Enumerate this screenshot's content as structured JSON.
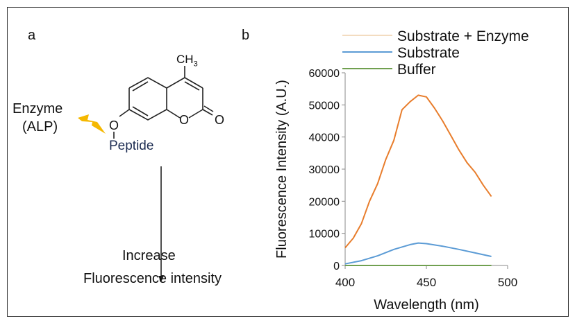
{
  "panel_a": {
    "label": "a",
    "enzyme": "Enzyme",
    "enzyme_sub": "(ALP)",
    "peptide": "Peptide",
    "ch3": "CH",
    "ch3_sub": "3",
    "o_ether": "O",
    "o_ring": "O",
    "o_carbonyl": "O",
    "result_line1": "Increase",
    "result_line2": "Fluorescence intensity",
    "bolt_color": "#f5b800"
  },
  "panel_b": {
    "label": "b"
  },
  "chart_data": {
    "type": "line",
    "title": "",
    "xlabel": "Wavelength (nm)",
    "ylabel": "Fluorescence Intensity (A.U.)",
    "xlim": [
      400,
      500
    ],
    "ylim": [
      0,
      60000
    ],
    "xticks": [
      "400",
      "450",
      "500"
    ],
    "yticks": [
      "0",
      "10000",
      "20000",
      "30000",
      "40000",
      "50000",
      "60000"
    ],
    "legend_position": "top-right",
    "series": [
      {
        "name": "Substrate + Enzyme",
        "color": "#e87d2c",
        "legend_color": "#f3dcc0",
        "x": [
          400,
          405,
          410,
          415,
          420,
          425,
          430,
          435,
          440,
          445,
          450,
          455,
          460,
          465,
          470,
          475,
          480,
          485,
          490
        ],
        "y": [
          5500,
          8500,
          13000,
          20000,
          25500,
          33000,
          39000,
          48500,
          51000,
          53000,
          52500,
          49000,
          45000,
          40500,
          36000,
          32000,
          29000,
          25000,
          21500
        ]
      },
      {
        "name": "Substrate",
        "color": "#5b9bd5",
        "legend_color": "#5b9bd5",
        "x": [
          400,
          410,
          420,
          430,
          440,
          445,
          450,
          460,
          470,
          480,
          490
        ],
        "y": [
          500,
          1500,
          3000,
          5000,
          6500,
          7000,
          6800,
          6000,
          5000,
          3900,
          2800
        ]
      },
      {
        "name": "Buffer",
        "color": "#70a050",
        "legend_color": "#70a050",
        "x": [
          400,
          490
        ],
        "y": [
          0,
          0
        ]
      }
    ]
  }
}
